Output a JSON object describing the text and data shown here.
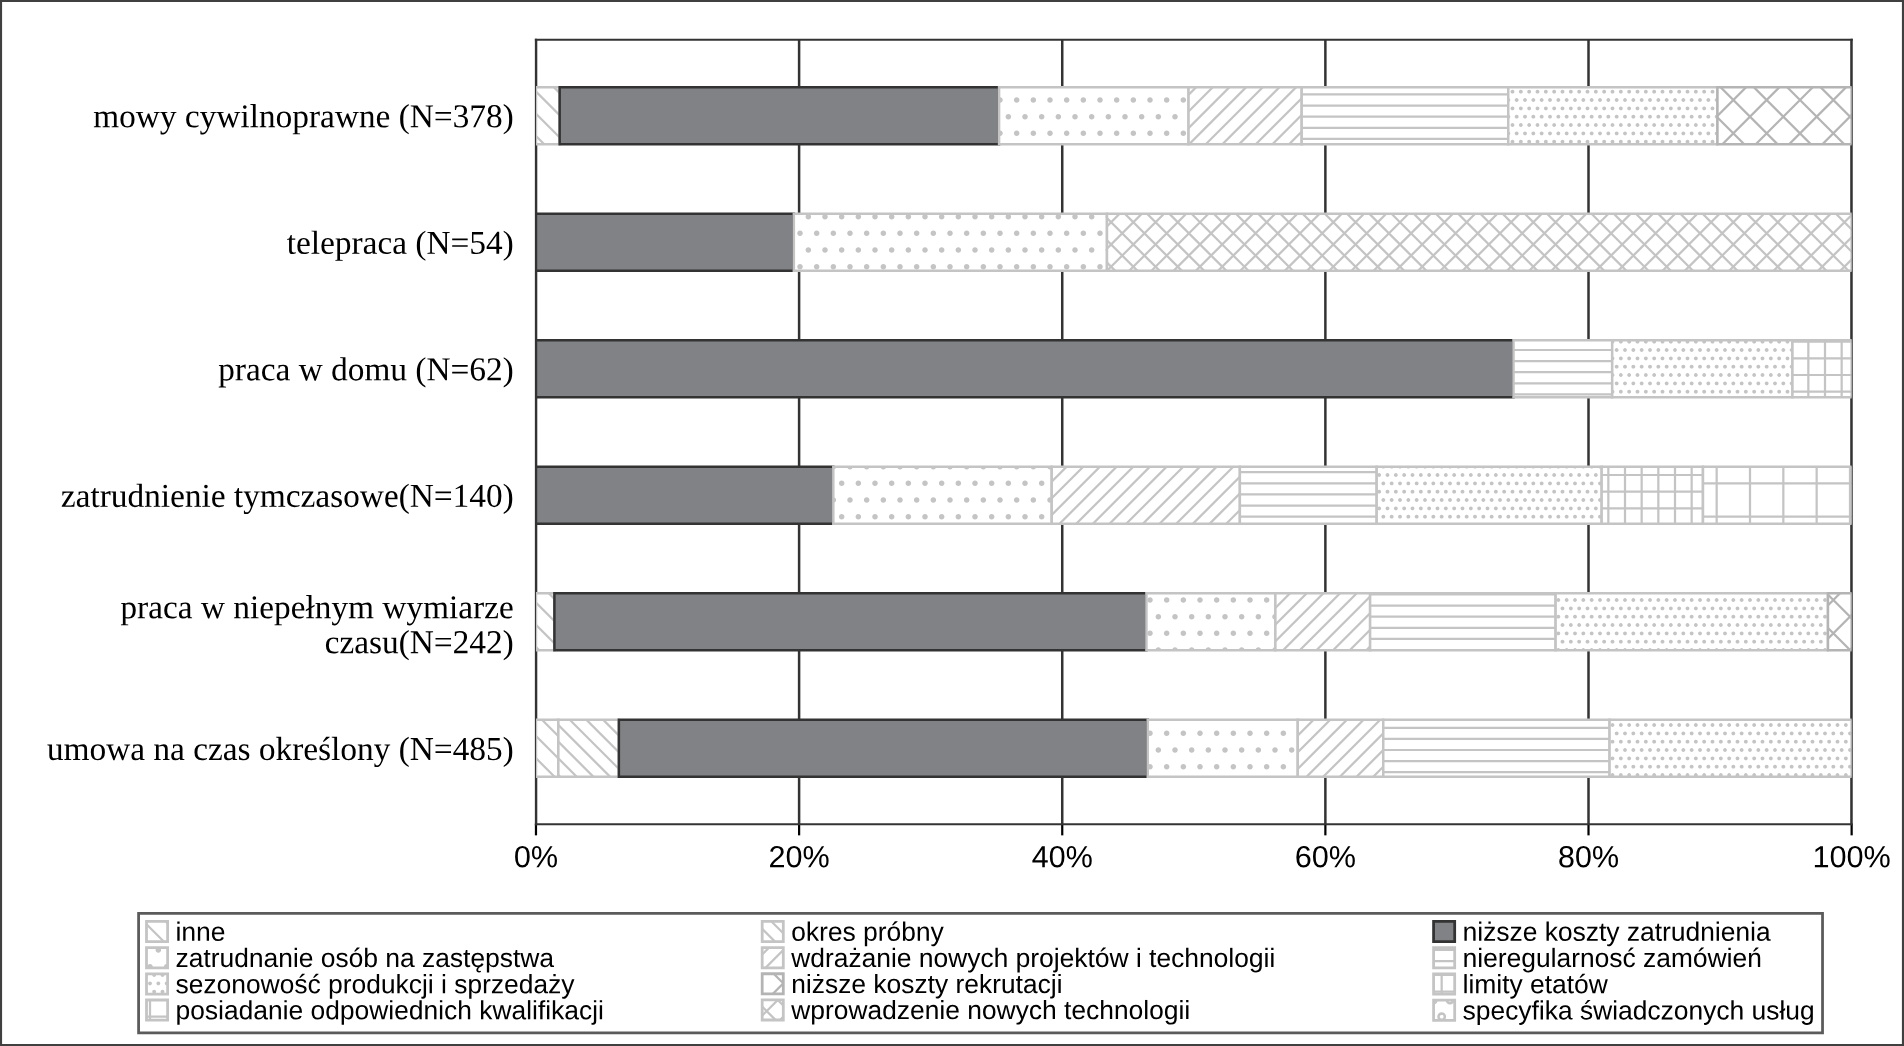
{
  "chart_data": {
    "type": "bar",
    "orientation": "horizontal",
    "stacked": true,
    "categories": [
      "mowy cywilnoprawne (N=378)",
      "telepraca (N=54)",
      "praca w domu (N=62)",
      "zatrudnienie tymczasowe(N=140)",
      "praca w niepełnym wymiarze\nczasu(N=242)",
      "umowa na czas określony (N=485)"
    ],
    "series": [
      {
        "name": "inne",
        "color": "#c4c4c4",
        "values": [
          1.8,
          0,
          0,
          0,
          1.4,
          1.7
        ]
      },
      {
        "name": "okres próbny",
        "color": "#c4c4c4",
        "values": [
          0,
          0,
          0,
          0,
          0,
          4.6
        ]
      },
      {
        "name": "niższe koszty zatrudnienia",
        "color": "#808285",
        "values": [
          33.4,
          19.6,
          74.3,
          22.6,
          45.0,
          40.2
        ]
      },
      {
        "name": "zatrudnanie osób na zastępstwa",
        "color": "#c4c4c4",
        "values": [
          14.4,
          23.8,
          0,
          16.6,
          9.8,
          11.4
        ]
      },
      {
        "name": "wdrażanie nowych projektów i technologii",
        "color": "#c4c4c4",
        "values": [
          8.6,
          0,
          0,
          14.3,
          7.2,
          6.5
        ]
      },
      {
        "name": "nieregularnosć zamówień",
        "color": "#c4c4c4",
        "values": [
          15.7,
          0,
          7.5,
          10.4,
          14.1,
          17.2
        ]
      },
      {
        "name": "sezonowość produkcji i sprzedaży",
        "color": "#c4c4c4",
        "values": [
          15.9,
          0,
          13.7,
          17.1,
          20.7,
          18.4
        ]
      },
      {
        "name": "niższe koszty rekrutacji",
        "color": "#b4b4b4",
        "values": [
          10.2,
          0,
          0,
          0,
          1.8,
          0
        ]
      },
      {
        "name": "limity etatów",
        "color": "#c4c4c4",
        "values": [
          0,
          0,
          4.5,
          7.7,
          0,
          0
        ]
      },
      {
        "name": "posiadanie odpowiednich kwalifikacji",
        "color": "#c4c4c4",
        "values": [
          0,
          0,
          0,
          11.3,
          0,
          0
        ]
      },
      {
        "name": "wprowadzenie nowych technologii",
        "color": "#c4c4c4",
        "values": [
          0,
          56.6,
          0,
          0,
          0,
          0
        ]
      },
      {
        "name": "specyfika świadczonych usług",
        "color": "#c4c4c4",
        "values": [
          0,
          0,
          0,
          0,
          0,
          0
        ]
      }
    ],
    "xlim": [
      0,
      100
    ],
    "xticks": [
      {
        "value": 0,
        "label": "0%"
      },
      {
        "value": 20,
        "label": "20%"
      },
      {
        "value": 40,
        "label": "40%"
      },
      {
        "value": 60,
        "label": "60%"
      },
      {
        "value": 80,
        "label": "80%"
      },
      {
        "value": 100,
        "label": "100%"
      }
    ],
    "grid": "x",
    "legend": "bottom"
  }
}
